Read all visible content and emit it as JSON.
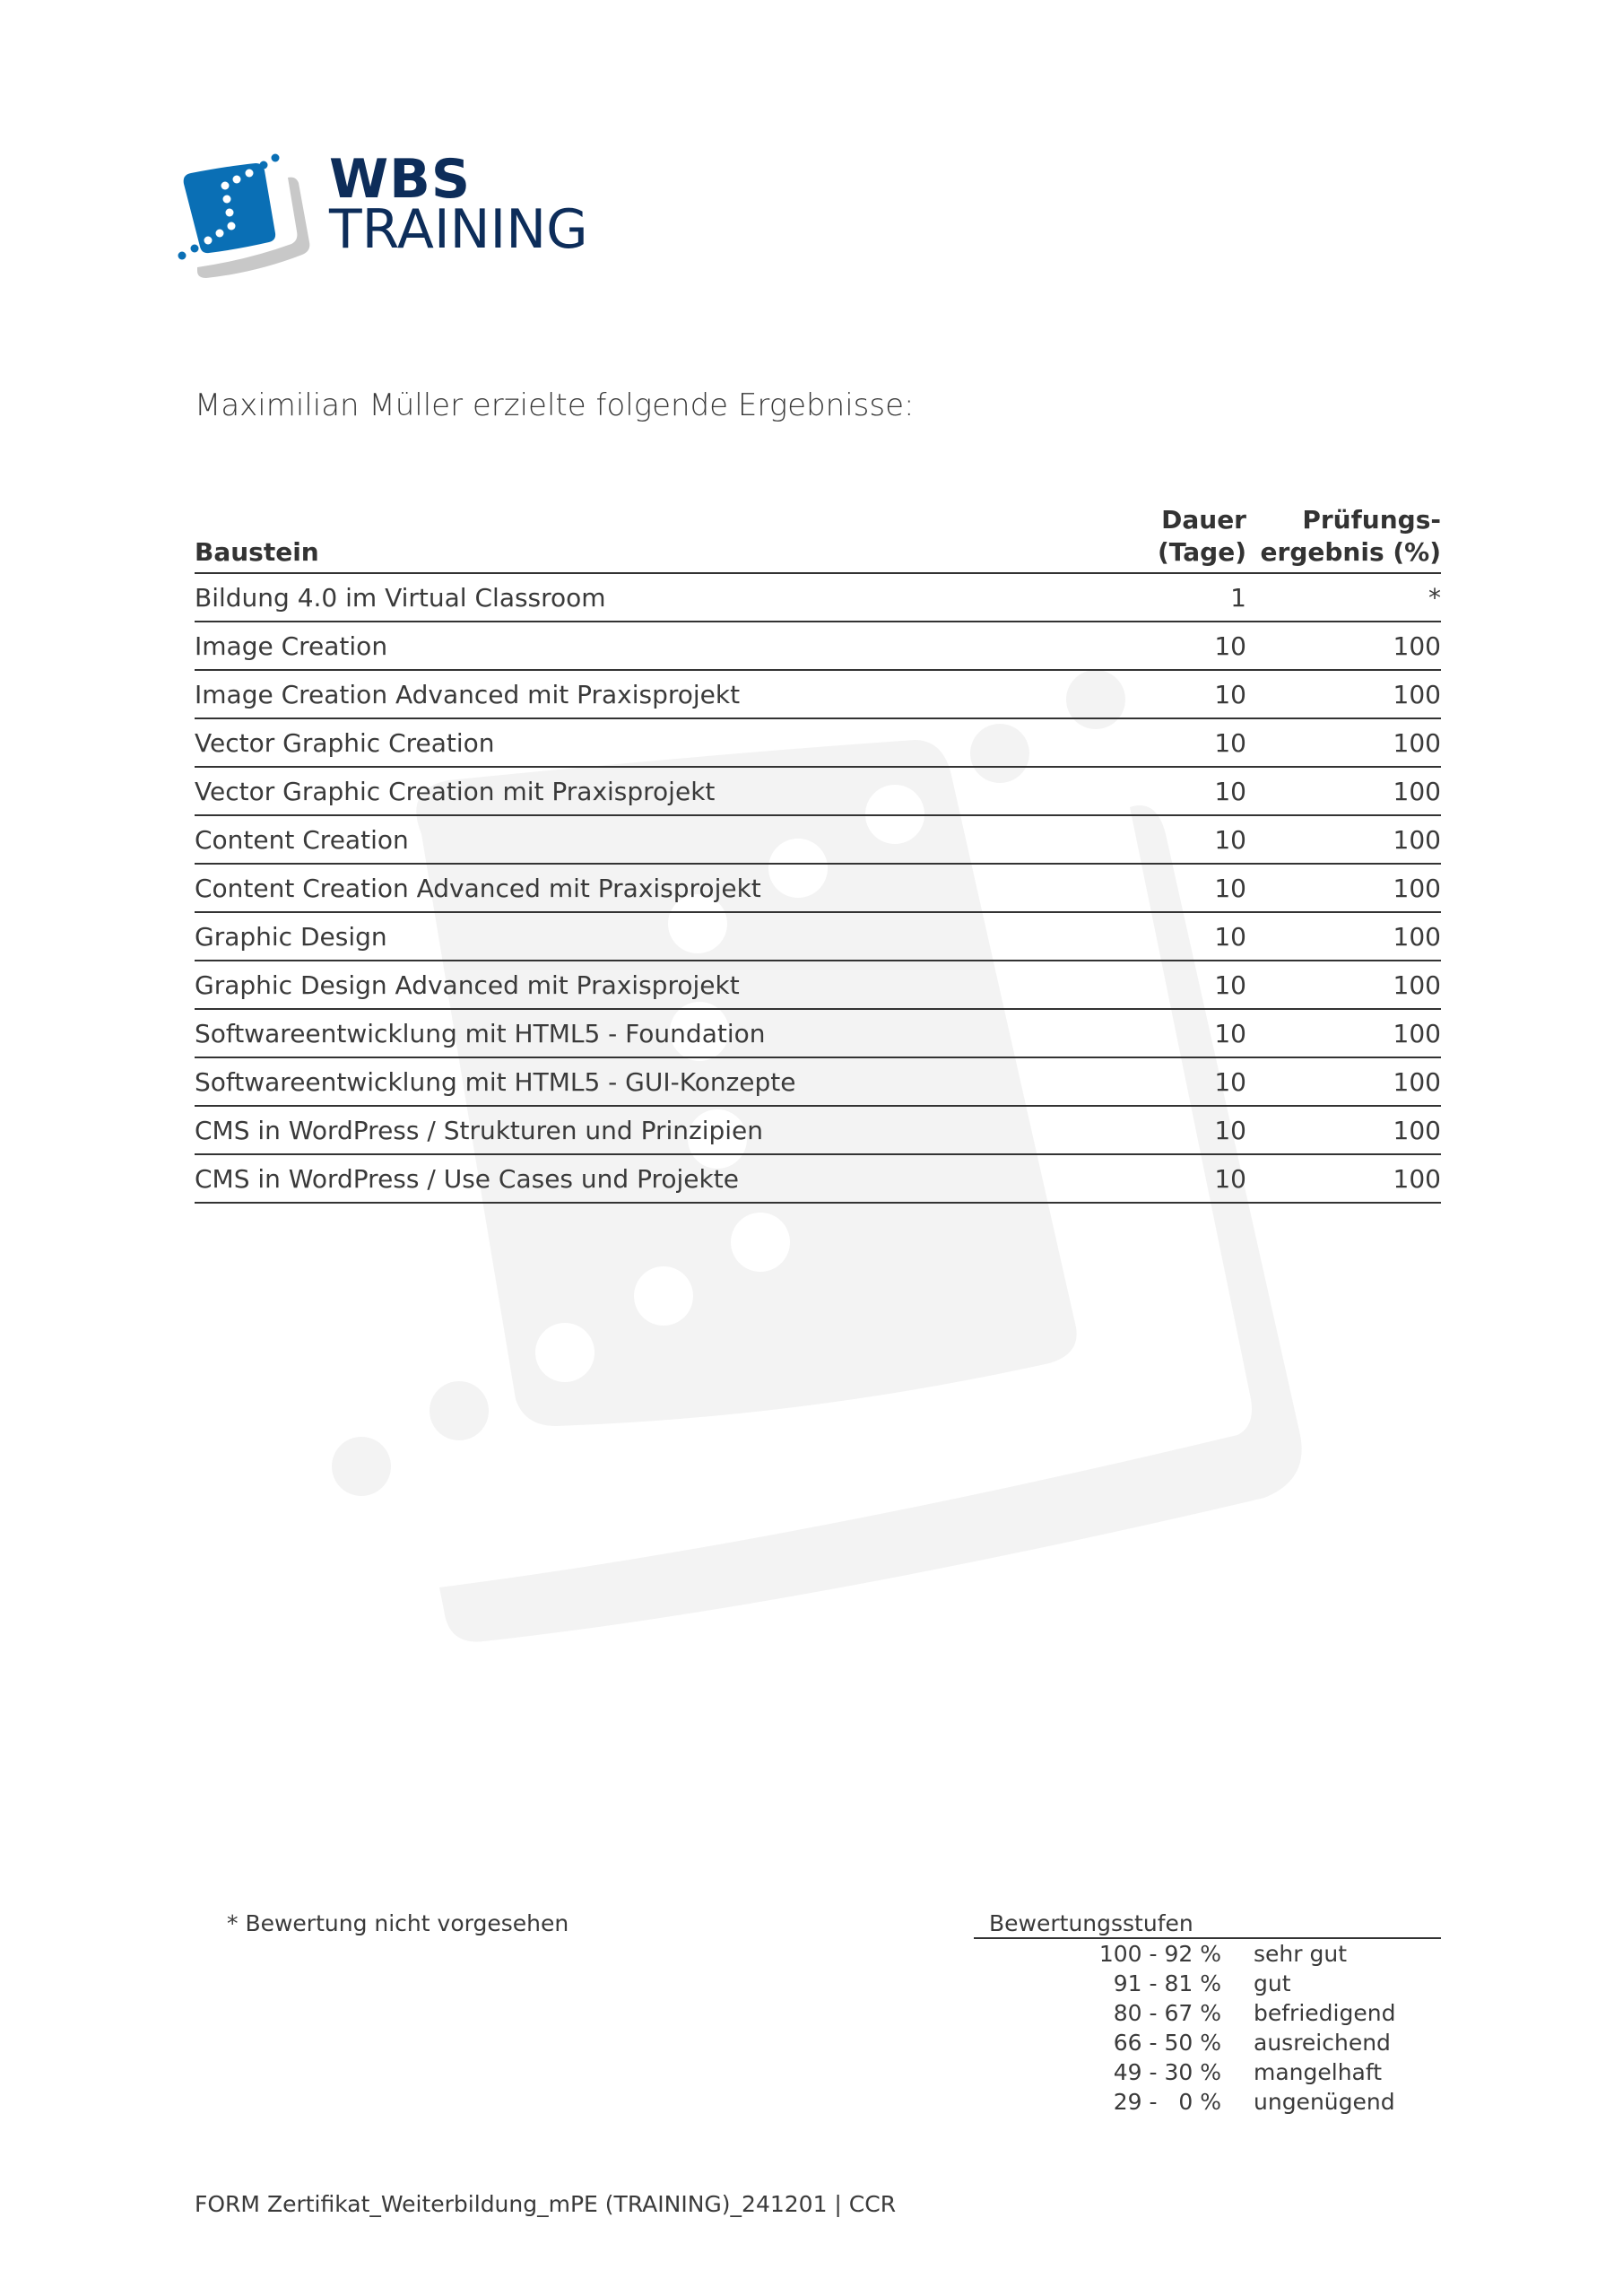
{
  "logo": {
    "line1": "WBS",
    "line2": "TRAINING",
    "brand_blue": "#0a6fb5",
    "brand_navy": "#0d2d5a"
  },
  "intro": "Maximilian Müller erzielte folgende Ergebnisse:",
  "table": {
    "headers": {
      "name": "Baustein",
      "days_line1": "Dauer",
      "days_line2": "(Tage)",
      "result_line1": "Prüfungs-",
      "result_line2": "ergebnis (%)"
    },
    "rows": [
      {
        "name": "Bildung 4.0 im Virtual Classroom",
        "days": "1",
        "result": "*"
      },
      {
        "name": "Image Creation",
        "days": "10",
        "result": "100"
      },
      {
        "name": "Image Creation Advanced mit Praxisprojekt",
        "days": "10",
        "result": "100"
      },
      {
        "name": "Vector Graphic Creation",
        "days": "10",
        "result": "100"
      },
      {
        "name": "Vector Graphic Creation mit Praxisprojekt",
        "days": "10",
        "result": "100"
      },
      {
        "name": "Content Creation",
        "days": "10",
        "result": "100"
      },
      {
        "name": "Content Creation Advanced mit Praxisprojekt",
        "days": "10",
        "result": "100"
      },
      {
        "name": "Graphic Design",
        "days": "10",
        "result": "100"
      },
      {
        "name": "Graphic Design Advanced mit Praxisprojekt",
        "days": "10",
        "result": "100"
      },
      {
        "name": "Softwareentwicklung mit HTML5 - Foundation",
        "days": "10",
        "result": "100"
      },
      {
        "name": "Softwareentwicklung mit HTML5 - GUI-Konzepte",
        "days": "10",
        "result": "100"
      },
      {
        "name": "CMS in WordPress / Strukturen und Prinzipien",
        "days": "10",
        "result": "100"
      },
      {
        "name": "CMS in WordPress / Use Cases und Projekte",
        "days": "10",
        "result": "100"
      }
    ]
  },
  "footnote": "* Bewertung nicht vorgesehen",
  "grading": {
    "title": "Bewertungsstufen",
    "levels": [
      {
        "range": "100 - 92 %",
        "label": "sehr gut"
      },
      {
        "range": "91 - 81 %",
        "label": "gut"
      },
      {
        "range": "80 - 67 %",
        "label": "befriedigend"
      },
      {
        "range": "66 - 50 %",
        "label": "ausreichend"
      },
      {
        "range": "49 - 30 %",
        "label": "mangelhaft"
      },
      {
        "range": "29 -   0 %",
        "label": "ungenügend"
      }
    ]
  },
  "footer": "FORM Zertifikat_Weiterbildung_mPE (TRAINING)_241201 | CCR"
}
